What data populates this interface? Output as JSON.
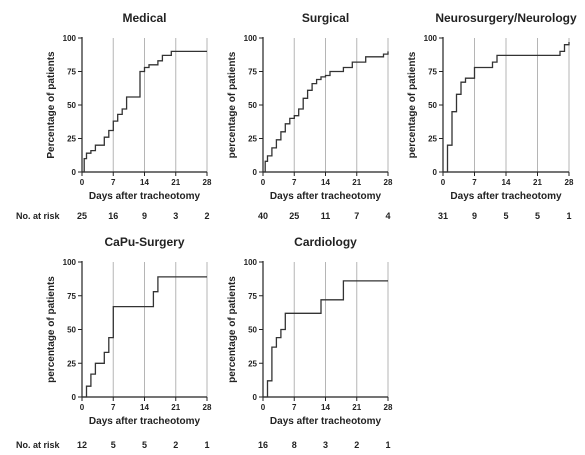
{
  "chart_data": [
    {
      "type": "line",
      "title": "Medical",
      "xlabel": "Days after tracheotomy",
      "ylabel": "Percentage of patients",
      "xlim": [
        0,
        28
      ],
      "ylim": [
        0,
        100
      ],
      "xticks": [
        0,
        7,
        14,
        21,
        28
      ],
      "yticks": [
        0,
        25,
        50,
        75,
        100
      ],
      "grid": "vertical",
      "step_points": [
        [
          0,
          0
        ],
        [
          0.5,
          10
        ],
        [
          1,
          14
        ],
        [
          2,
          16
        ],
        [
          3,
          20
        ],
        [
          5,
          26
        ],
        [
          6,
          31
        ],
        [
          7,
          38
        ],
        [
          8,
          43
        ],
        [
          9,
          47
        ],
        [
          10,
          56
        ],
        [
          13,
          75
        ],
        [
          14,
          78
        ],
        [
          15,
          80
        ],
        [
          17,
          83
        ],
        [
          18,
          87
        ],
        [
          20,
          90
        ],
        [
          28,
          90
        ]
      ],
      "risk_label": "No. at risk",
      "risk_values": [
        "25",
        "16",
        "9",
        "3",
        "2"
      ]
    },
    {
      "type": "line",
      "title": "Surgical",
      "xlabel": "Days after tracheotomy",
      "ylabel": "percentage of patients",
      "xlim": [
        0,
        28
      ],
      "ylim": [
        0,
        100
      ],
      "xticks": [
        0,
        7,
        14,
        21,
        28
      ],
      "yticks": [
        0,
        25,
        50,
        75,
        100
      ],
      "grid": "vertical",
      "step_points": [
        [
          0,
          0
        ],
        [
          0.5,
          8
        ],
        [
          1,
          12
        ],
        [
          2,
          18
        ],
        [
          3,
          24
        ],
        [
          4,
          30
        ],
        [
          5,
          36
        ],
        [
          6,
          40
        ],
        [
          7,
          42
        ],
        [
          8,
          47
        ],
        [
          9,
          55
        ],
        [
          10,
          61
        ],
        [
          11,
          66
        ],
        [
          12,
          69
        ],
        [
          13,
          71
        ],
        [
          14,
          72
        ],
        [
          15,
          75
        ],
        [
          18,
          78
        ],
        [
          20,
          82
        ],
        [
          23,
          86
        ],
        [
          27,
          88
        ],
        [
          28,
          90
        ]
      ],
      "risk_label": "",
      "risk_values": [
        "40",
        "25",
        "11",
        "7",
        "4"
      ]
    },
    {
      "type": "line",
      "title": "Neurosurgery/Neurology",
      "xlabel": "Days after tracheotomy",
      "ylabel": "percentage of patients",
      "xlim": [
        0,
        28
      ],
      "ylim": [
        0,
        100
      ],
      "xticks": [
        0,
        7,
        14,
        21,
        28
      ],
      "yticks": [
        0,
        25,
        50,
        75,
        100
      ],
      "grid": "vertical",
      "step_points": [
        [
          0,
          0
        ],
        [
          1,
          20
        ],
        [
          2,
          45
        ],
        [
          3,
          58
        ],
        [
          4,
          67
        ],
        [
          5,
          70
        ],
        [
          7,
          78
        ],
        [
          11,
          82
        ],
        [
          12,
          87
        ],
        [
          26,
          90
        ],
        [
          27,
          95
        ],
        [
          28,
          97
        ]
      ],
      "risk_label": "",
      "risk_values": [
        "31",
        "9",
        "5",
        "5",
        "1"
      ]
    },
    {
      "type": "line",
      "title": "CaPu-Surgery",
      "xlabel": "Days after tracheotomy",
      "ylabel": "percentage of patients",
      "xlim": [
        0,
        28
      ],
      "ylim": [
        0,
        100
      ],
      "xticks": [
        0,
        7,
        14,
        21,
        28
      ],
      "yticks": [
        0,
        25,
        50,
        75,
        100
      ],
      "grid": "vertical",
      "step_points": [
        [
          0,
          0
        ],
        [
          1,
          8
        ],
        [
          2,
          17
        ],
        [
          3,
          25
        ],
        [
          5,
          33
        ],
        [
          6,
          44
        ],
        [
          7,
          67
        ],
        [
          16,
          78
        ],
        [
          17,
          89
        ],
        [
          28,
          89
        ]
      ],
      "risk_label": "No. at risk",
      "risk_values": [
        "12",
        "5",
        "5",
        "2",
        "1"
      ]
    },
    {
      "type": "line",
      "title": "Cardiology",
      "xlabel": "Days after tracheotomy",
      "ylabel": "percentage of patients",
      "xlim": [
        0,
        28
      ],
      "ylim": [
        0,
        100
      ],
      "xticks": [
        0,
        7,
        14,
        21,
        28
      ],
      "yticks": [
        0,
        25,
        50,
        75,
        100
      ],
      "grid": "vertical",
      "step_points": [
        [
          0,
          0
        ],
        [
          1,
          12
        ],
        [
          2,
          37
        ],
        [
          3,
          44
        ],
        [
          4,
          50
        ],
        [
          5,
          62
        ],
        [
          13,
          72
        ],
        [
          18,
          86
        ],
        [
          28,
          86
        ]
      ],
      "risk_label": "",
      "risk_values": [
        "16",
        "8",
        "3",
        "2",
        "1"
      ]
    }
  ]
}
